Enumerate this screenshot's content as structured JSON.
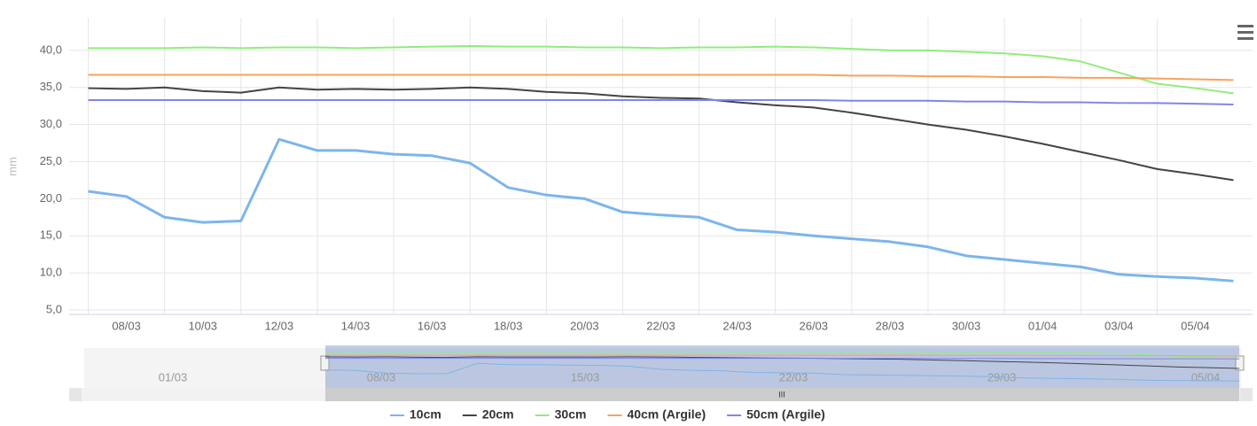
{
  "chart_data": {
    "type": "line",
    "y_axis_label": "mm",
    "categories": [
      null,
      "08/03",
      null,
      "10/03",
      null,
      "12/03",
      null,
      "14/03",
      null,
      "16/03",
      null,
      "18/03",
      null,
      "20/03",
      null,
      "22/03",
      null,
      "24/03",
      null,
      "26/03",
      null,
      "28/03",
      null,
      "30/03",
      null,
      "01/04",
      null,
      "03/04",
      null,
      "05/04",
      null
    ],
    "ylim": [
      4.4,
      44.4
    ],
    "yticks": [
      {
        "value": 5,
        "label": "5,0"
      },
      {
        "value": 10,
        "label": "10,0"
      },
      {
        "value": 15,
        "label": "15,0"
      },
      {
        "value": 20,
        "label": "20,0"
      },
      {
        "value": 25,
        "label": "25,0"
      },
      {
        "value": 30,
        "label": "30,0"
      },
      {
        "value": 35,
        "label": "35,0"
      },
      {
        "value": 40,
        "label": "40,0"
      }
    ],
    "grid": true,
    "legend": "bottom",
    "series": [
      {
        "name": "10cm",
        "color": "#7cb5ec",
        "values": [
          21.0,
          20.3,
          17.5,
          16.8,
          17.0,
          28.0,
          26.5,
          26.5,
          26.0,
          25.8,
          24.8,
          21.5,
          20.5,
          20.0,
          18.2,
          17.8,
          17.5,
          15.8,
          15.5,
          15.0,
          14.6,
          14.2,
          13.5,
          12.3,
          11.8,
          11.3,
          10.8,
          9.8,
          9.5,
          9.3,
          8.9
        ]
      },
      {
        "name": "20cm",
        "color": "#434348",
        "values": [
          34.9,
          34.8,
          35.0,
          34.5,
          34.3,
          35.0,
          34.7,
          34.8,
          34.7,
          34.8,
          35.0,
          34.8,
          34.4,
          34.2,
          33.8,
          33.6,
          33.5,
          33.0,
          32.6,
          32.3,
          31.6,
          30.8,
          30.0,
          29.3,
          28.4,
          27.4,
          26.3,
          25.2,
          24.0,
          23.3,
          22.5
        ]
      },
      {
        "name": "30cm",
        "color": "#90ed7d",
        "values": [
          40.3,
          40.3,
          40.3,
          40.4,
          40.3,
          40.4,
          40.4,
          40.3,
          40.4,
          40.5,
          40.6,
          40.5,
          40.5,
          40.4,
          40.4,
          40.3,
          40.4,
          40.4,
          40.5,
          40.4,
          40.2,
          40.0,
          40.0,
          39.8,
          39.6,
          39.2,
          38.5,
          37.0,
          35.5,
          34.9,
          34.2
        ]
      },
      {
        "name": "40cm (Argile)",
        "color": "#f7a35c",
        "values": [
          36.7,
          36.7,
          36.7,
          36.7,
          36.7,
          36.7,
          36.7,
          36.7,
          36.7,
          36.7,
          36.7,
          36.7,
          36.7,
          36.7,
          36.7,
          36.7,
          36.7,
          36.7,
          36.7,
          36.7,
          36.6,
          36.6,
          36.5,
          36.5,
          36.4,
          36.4,
          36.3,
          36.3,
          36.2,
          36.1,
          36.0
        ]
      },
      {
        "name": "50cm (Argile)",
        "color": "#8085e9",
        "values": [
          33.3,
          33.3,
          33.3,
          33.3,
          33.3,
          33.3,
          33.3,
          33.3,
          33.3,
          33.3,
          33.3,
          33.3,
          33.3,
          33.3,
          33.3,
          33.3,
          33.3,
          33.3,
          33.3,
          33.3,
          33.2,
          33.2,
          33.2,
          33.1,
          33.1,
          33.0,
          33.0,
          32.9,
          32.9,
          32.8,
          32.7
        ]
      }
    ]
  },
  "navigator": {
    "labels": [
      "01/03",
      "08/03",
      "15/03",
      "22/03",
      "29/03",
      "05/04"
    ],
    "scrollbar_grip": "III"
  }
}
